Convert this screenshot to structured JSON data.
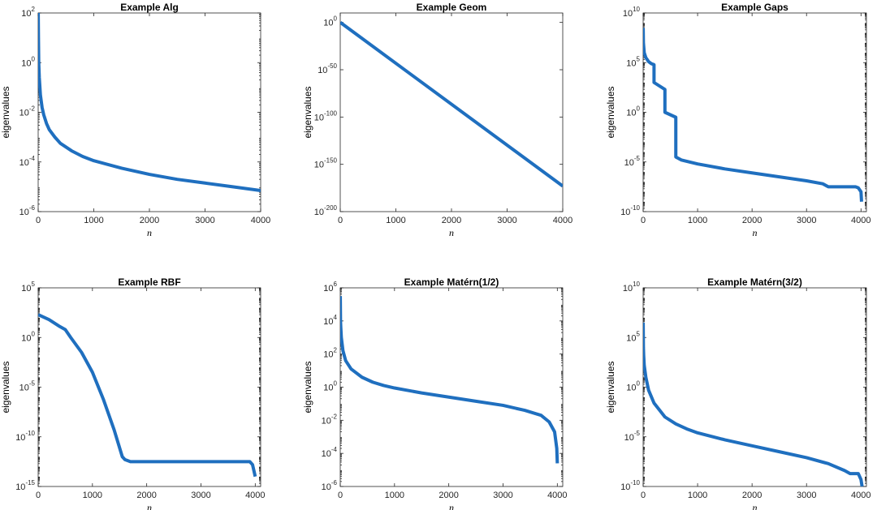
{
  "chart_data": [
    {
      "type": "line",
      "title": "Example Alg",
      "xlabel": "n",
      "ylabel": "eigenvalues",
      "xlim": [
        0,
        4000
      ],
      "ylim_exp": [
        -6,
        2
      ],
      "xticks": [
        0,
        1000,
        2000,
        3000,
        4000
      ],
      "yticks_exp": [
        -6,
        -4,
        -2,
        0,
        2
      ],
      "series": [
        {
          "name": "eigenvalues",
          "x": [
            1,
            5,
            10,
            20,
            40,
            70,
            100,
            150,
            200,
            300,
            400,
            600,
            800,
            1000,
            1500,
            2000,
            2500,
            3000,
            3500,
            4000
          ],
          "log10y": [
            2,
            1.0,
            0.0,
            -0.6,
            -1.3,
            -1.8,
            -2.1,
            -2.45,
            -2.7,
            -3.0,
            -3.25,
            -3.55,
            -3.78,
            -3.95,
            -4.25,
            -4.5,
            -4.7,
            -4.85,
            -5.0,
            -5.15
          ]
        }
      ]
    },
    {
      "type": "line",
      "title": "Example Geom",
      "xlabel": "n",
      "ylabel": "eigenvalues",
      "xlim": [
        0,
        4000
      ],
      "ylim_exp": [
        -200,
        10
      ],
      "xticks": [
        0,
        1000,
        2000,
        3000,
        4000
      ],
      "yticks_exp": [
        -200,
        -150,
        -100,
        -50,
        0
      ],
      "series": [
        {
          "name": "eigenvalues",
          "x": [
            1,
            4000
          ],
          "log10y": [
            0,
            -173
          ]
        }
      ]
    },
    {
      "type": "line",
      "title": "Example Gaps",
      "xlabel": "n",
      "ylabel": "eigenvalues",
      "xlim": [
        0,
        4100
      ],
      "ylim_exp": [
        -10,
        10
      ],
      "xticks": [
        0,
        1000,
        2000,
        3000,
        4000
      ],
      "yticks_exp": [
        -10,
        -5,
        0,
        5,
        10
      ],
      "series": [
        {
          "name": "eigenvalues",
          "x": [
            1,
            5,
            20,
            50,
            100,
            150,
            200,
            200,
            400,
            400,
            600,
            600,
            700,
            1000,
            1500,
            2000,
            2500,
            3000,
            3300,
            3400,
            3600,
            3900,
            3950,
            4000,
            4010
          ],
          "log10y": [
            8.5,
            7.0,
            6.0,
            5.5,
            5.1,
            4.9,
            4.8,
            3.0,
            2.3,
            0.0,
            -0.5,
            -4.5,
            -4.8,
            -5.2,
            -5.7,
            -6.1,
            -6.5,
            -6.9,
            -7.2,
            -7.5,
            -7.5,
            -7.5,
            -7.6,
            -8.0,
            -9.0
          ]
        }
      ]
    },
    {
      "type": "line",
      "title": "Example RBF",
      "xlabel": "n",
      "ylabel": "eigenvalues",
      "xlim": [
        0,
        4100
      ],
      "ylim_exp": [
        -15,
        5
      ],
      "xticks": [
        0,
        1000,
        2000,
        3000,
        4000
      ],
      "yticks_exp": [
        -15,
        -10,
        -5,
        0,
        5
      ],
      "series": [
        {
          "name": "eigenvalues",
          "x": [
            1,
            200,
            400,
            500,
            600,
            800,
            1000,
            1200,
            1400,
            1550,
            1600,
            1700,
            2000,
            3000,
            3900,
            3950,
            4000
          ],
          "log10y": [
            2.3,
            1.8,
            1.1,
            0.8,
            0.0,
            -1.5,
            -3.5,
            -6.2,
            -9.3,
            -12.0,
            -12.3,
            -12.5,
            -12.5,
            -12.5,
            -12.5,
            -12.8,
            -14.0
          ]
        }
      ]
    },
    {
      "type": "line",
      "title": "Example Matérn(1/2)",
      "xlabel": "n",
      "ylabel": "eigenvalues",
      "xlim": [
        0,
        4100
      ],
      "ylim_exp": [
        -6,
        6
      ],
      "xticks": [
        0,
        1000,
        2000,
        3000,
        4000
      ],
      "yticks_exp": [
        -6,
        -4,
        -2,
        0,
        2,
        4,
        6
      ],
      "series": [
        {
          "name": "eigenvalues",
          "x": [
            1,
            5,
            10,
            20,
            50,
            100,
            200,
            400,
            600,
            800,
            1000,
            1500,
            2000,
            2500,
            3000,
            3400,
            3700,
            3850,
            3950,
            3990,
            4000
          ],
          "log10y": [
            5.5,
            4.0,
            3.6,
            3.0,
            2.2,
            1.6,
            1.1,
            0.6,
            0.3,
            0.1,
            -0.05,
            -0.35,
            -0.6,
            -0.85,
            -1.1,
            -1.4,
            -1.7,
            -2.1,
            -2.7,
            -3.7,
            -4.6
          ]
        }
      ]
    },
    {
      "type": "line",
      "title": "Example Matérn(3/2)",
      "xlabel": "n",
      "ylabel": "eigenvalues",
      "xlim": [
        0,
        4100
      ],
      "ylim_exp": [
        -10,
        10
      ],
      "xticks": [
        0,
        1000,
        2000,
        3000,
        4000
      ],
      "yticks_exp": [
        -10,
        -5,
        0,
        5,
        10
      ],
      "series": [
        {
          "name": "eigenvalues",
          "x": [
            1,
            5,
            10,
            20,
            50,
            100,
            200,
            400,
            600,
            800,
            1000,
            1500,
            2000,
            2500,
            3000,
            3400,
            3700,
            3800,
            3950,
            4000,
            4020
          ],
          "log10y": [
            6.5,
            4.0,
            3.2,
            2.2,
            1.0,
            -0.3,
            -1.6,
            -3.0,
            -3.7,
            -4.2,
            -4.6,
            -5.3,
            -5.9,
            -6.5,
            -7.1,
            -7.7,
            -8.4,
            -8.7,
            -8.7,
            -9.3,
            -10.0
          ]
        }
      ]
    }
  ]
}
